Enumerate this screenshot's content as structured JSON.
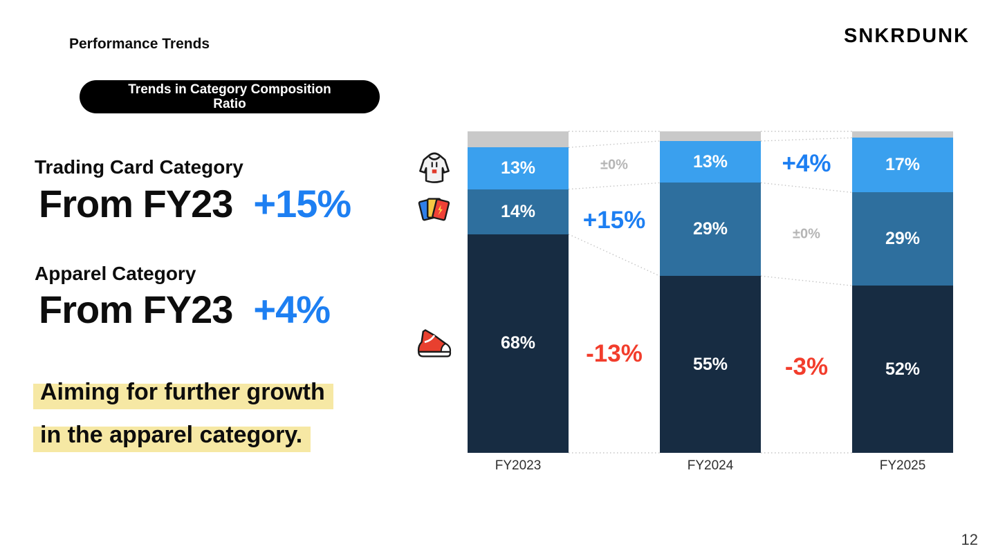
{
  "header": {
    "title": "Performance Trends",
    "logo": "SNKRDUNK",
    "badge": {
      "line1": "Trends in Category Composition",
      "line2": "Ratio"
    }
  },
  "left": {
    "blocks": [
      {
        "label": "Trading Card Category",
        "prefix": "From FY23",
        "change": "+15%"
      },
      {
        "label": "Apparel Category",
        "prefix": "From FY23",
        "change": "+4%"
      }
    ],
    "highlight": {
      "line1": "Aiming for further growth",
      "line2": "in the apparel category."
    }
  },
  "footer": {
    "page_number": "12"
  },
  "colors": {
    "accent_blue": "#1d7ff2",
    "navy": "#172c42",
    "mid_blue": "#2e6f9e",
    "light_blue": "#3aa0ee",
    "gray_segment": "#c9c9c9",
    "red": "#f23d2c",
    "muted_gray": "#b5b5b5",
    "highlight_yellow": "#f6e8a4"
  },
  "chart_data": {
    "type": "stacked-bar",
    "title": "Trends in Category Composition Ratio",
    "categories": [
      "FY2023",
      "FY2024",
      "FY2025"
    ],
    "unit": "%",
    "ylim": [
      0,
      100
    ],
    "series": [
      {
        "name": "other",
        "color_key": "gray_segment",
        "show_label": false,
        "values": [
          5,
          3,
          2
        ]
      },
      {
        "name": "apparel",
        "color_key": "light_blue",
        "show_label": true,
        "values": [
          13,
          13,
          17
        ]
      },
      {
        "name": "trading-cards",
        "color_key": "mid_blue",
        "show_label": true,
        "values": [
          14,
          29,
          29
        ]
      },
      {
        "name": "sneakers",
        "color_key": "navy",
        "show_label": true,
        "values": [
          68,
          55,
          52
        ]
      }
    ],
    "changes": [
      [
        {
          "segment": "apparel",
          "label": "±0%",
          "style": "muted"
        },
        {
          "segment": "trading-cards",
          "label": "+15%",
          "style": "up"
        },
        {
          "segment": "sneakers",
          "label": "-13%",
          "style": "down"
        }
      ],
      [
        {
          "segment": "apparel",
          "label": "+4%",
          "style": "up"
        },
        {
          "segment": "trading-cards",
          "label": "±0%",
          "style": "muted"
        },
        {
          "segment": "sneakers",
          "label": "-3%",
          "style": "down"
        }
      ]
    ],
    "icons": [
      {
        "id": "icon-hoodie",
        "name": "hoodie-icon",
        "segment": "apparel"
      },
      {
        "id": "icon-cards",
        "name": "trading-cards-icon",
        "segment": "trading-cards"
      },
      {
        "id": "icon-sneaker",
        "name": "sneaker-icon",
        "segment": "sneakers"
      }
    ]
  }
}
